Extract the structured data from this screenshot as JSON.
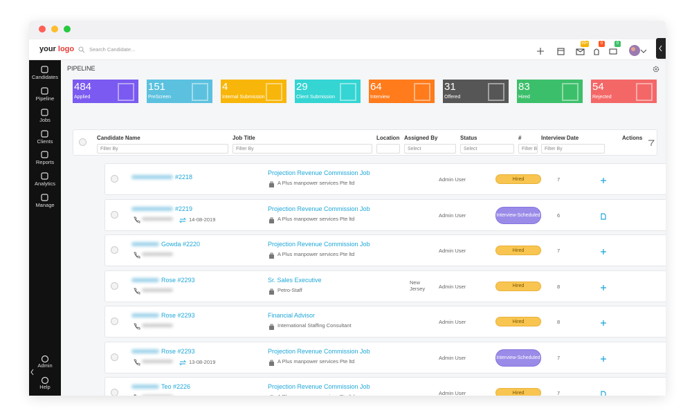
{
  "header": {
    "logo_first": "your",
    "logo_second": "logo",
    "search_placeholder": "Search Candidate...",
    "badges": [
      "99+",
      "0",
      "0"
    ]
  },
  "sidebar": {
    "items": [
      "Candidates",
      "Pipeline",
      "Jobs",
      "Clients",
      "Reports",
      "Analytics",
      "Manage"
    ],
    "bottom_items": [
      "Admin",
      "Help"
    ]
  },
  "page_title": "PIPELINE",
  "stages": [
    {
      "count": 484,
      "label": "Applied",
      "color": "#7a5af0"
    },
    {
      "count": 151,
      "label": "PreScreen",
      "color": "#5bc1df"
    },
    {
      "count": 4,
      "label": "Internal Submission",
      "color": "#f8b60a"
    },
    {
      "count": 29,
      "label": "Client Submission",
      "color": "#34d5d3"
    },
    {
      "count": 64,
      "label": "Interview",
      "color": "#ff7b1c"
    },
    {
      "count": 31,
      "label": "Offered",
      "color": "#565656"
    },
    {
      "count": 83,
      "label": "Hired",
      "color": "#3cbf6a"
    },
    {
      "count": 54,
      "label": "Rejected",
      "color": "#f46767"
    }
  ],
  "table": {
    "columns": [
      "Candidate Name",
      "Job Title",
      "Location",
      "Assigned By",
      "Status",
      "#",
      "Interview Date",
      "Actions"
    ],
    "filters": {
      "candidate": "Filter By",
      "job": "Filter By",
      "assigned": "Select",
      "status": "Select",
      "count": "Filter B",
      "interview": "Filter By"
    },
    "rows": [
      {
        "name": "#2218",
        "job": "Projection Revenue Commission Job",
        "company": "A Plus manpower services Pte ltd",
        "assigned": "Admin User",
        "status": "Hired",
        "count": 7,
        "action": "plus"
      },
      {
        "name": "#2219",
        "date": "14-08-2019",
        "job": "Projection Revenue Commission Job",
        "company": "A Plus manpower services Pte ltd",
        "assigned": "Admin User",
        "status": "Interview-Scheduled",
        "count": 6,
        "action": "doc"
      },
      {
        "name": "Gowda #2220",
        "job": "Projection Revenue Commission Job",
        "company": "A Plus manpower services Pte ltd",
        "assigned": "Admin User",
        "status": "Hired",
        "count": 7,
        "action": "plus"
      },
      {
        "name": "Rose #2293",
        "job": "Sr. Sales Executive",
        "company": "Petro-Staff",
        "location": "New Jersey",
        "assigned": "Admin User",
        "status": "Hired",
        "count": 8,
        "action": "plus"
      },
      {
        "name": "Rose #2293",
        "job": "Financial Advisor",
        "company": "International Staffing Consultant",
        "assigned": "Admin User",
        "status": "Hired",
        "count": 8,
        "action": "plus"
      },
      {
        "name": "Rose #2293",
        "date": "13-08-2019",
        "job": "Projection Revenue Commission Job",
        "company": "A Plus manpower services Pte ltd",
        "assigned": "Admin User",
        "status": "Interview-Scheduled",
        "count": 7,
        "action": "plus"
      },
      {
        "name": "Teo #2226",
        "job": "Projection Revenue Commission Job",
        "company": "A Plus manpower services Pte ltd",
        "assigned": "Admin User",
        "status": "Hired",
        "count": 7,
        "action": "doc"
      }
    ]
  }
}
